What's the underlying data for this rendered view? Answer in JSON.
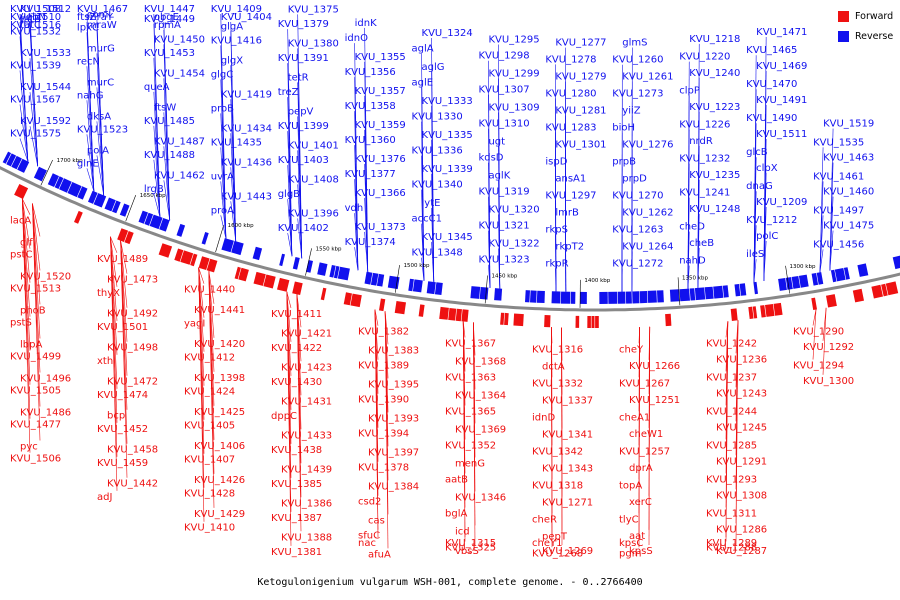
{
  "caption": "Ketogulonigenium vulgarum WSH-001, complete genome. - 0..2766400",
  "legend": [
    {
      "label": "Forward",
      "color": "#ee1111"
    },
    {
      "label": "Reverse",
      "color": "#1111ee"
    }
  ],
  "colors": {
    "forward": "#ee1111",
    "reverse": "#1111ee",
    "backbone": "#888888"
  },
  "scale_labels": [
    "1700 kbp",
    "1650 kbp",
    "1600 kbp",
    "1550 kbp",
    "1500 kbp",
    "1450 kbp",
    "1400 kbp",
    "1350 kbp",
    "1300 kbp"
  ],
  "reverse_genes": [
    "KVU_1575",
    "KVU_1592",
    "KVU_1567",
    "KVU_1544",
    "KVU_1539",
    "KVU_1533",
    "KVU_1532",
    "tatB",
    "KVU_1516",
    "KVU_1512",
    "KVU_1510",
    "tatC",
    "KVU_1508",
    "yebN",
    "glnE",
    "polA",
    "KVU_1523",
    "dksA",
    "nahG",
    "murC",
    "recN",
    "murG",
    "lpxC",
    "comL",
    "ftsZ",
    "mraW",
    "KVU_1467",
    "mraY",
    "lrgB",
    "KVU_1462",
    "KVU_1488",
    "KVU_1487",
    "KVU_1485",
    "ftsW",
    "queA",
    "KVU_1454",
    "KVU_1453",
    "KVU_1450",
    "KVU_1449",
    "rpmA",
    "KVU_1447",
    "obgE",
    "proA",
    "KVU_1443",
    "uvrA",
    "KVU_1436",
    "KVU_1435",
    "KVU_1434",
    "proB",
    "KVU_1419",
    "glgC",
    "glgX",
    "KVU_1416",
    "glgA",
    "KVU_1409",
    "KVU_1404",
    "KVU_1402",
    "KVU_1396",
    "glgB",
    "KVU_1408",
    "KVU_1403",
    "KVU_1401",
    "KVU_1399",
    "pepV",
    "treZ",
    "tetR",
    "KVU_1391",
    "KVU_1380",
    "KVU_1379",
    "KVU_1375",
    "KVU_1374",
    "KVU_1373",
    "vdh",
    "KVU_1366",
    "KVU_1377",
    "KVU_1376",
    "KVU_1360",
    "KVU_1359",
    "KVU_1358",
    "KVU_1357",
    "KVU_1356",
    "KVU_1355",
    "idnO",
    "idnK",
    "KVU_1348",
    "KVU_1345",
    "accC1",
    "lytE",
    "KVU_1340",
    "KVU_1339",
    "KVU_1336",
    "KVU_1335",
    "KVU_1330",
    "KVU_1333",
    "aglE",
    "aglG",
    "aglA",
    "KVU_1324",
    "KVU_1323",
    "KVU_1322",
    "KVU_1321",
    "KVU_1320",
    "KVU_1319",
    "aglK",
    "kdsD",
    "ugt",
    "KVU_1310",
    "KVU_1309",
    "KVU_1307",
    "KVU_1299",
    "KVU_1298",
    "KVU_1295",
    "rkpR",
    "rkpT2",
    "rkpS",
    "lmrB",
    "KVU_1297",
    "ansA1",
    "ispD",
    "KVU_1301",
    "KVU_1283",
    "KVU_1281",
    "KVU_1280",
    "KVU_1279",
    "KVU_1278",
    "KVU_1277",
    "KVU_1272",
    "KVU_1264",
    "KVU_1263",
    "KVU_1262",
    "KVU_1270",
    "prpD",
    "prpB",
    "KVU_1276",
    "bioH",
    "yiiZ",
    "KVU_1273",
    "KVU_1261",
    "KVU_1260",
    "glmS",
    "nahD",
    "cheB",
    "cheD",
    "KVU_1248",
    "KVU_1241",
    "KVU_1235",
    "KVU_1232",
    "nrdR",
    "KVU_1226",
    "KVU_1223",
    "clpP",
    "KVU_1240",
    "KVU_1220",
    "KVU_1218",
    "ileS",
    "polC",
    "KVU_1212",
    "KVU_1209",
    "dnaG",
    "clpX",
    "glcB",
    "KVU_1511",
    "KVU_1490",
    "KVU_1491",
    "KVU_1470",
    "KVU_1469",
    "KVU_1465",
    "KVU_1471",
    "KVU_1456",
    "KVU_1475",
    "KVU_1497",
    "KVU_1460",
    "KVU_1461",
    "KVU_1463",
    "KVU_1535",
    "KVU_1519"
  ],
  "forward_genes": [
    "lacA",
    "glf",
    "pstC",
    "KVU_1520",
    "KVU_1513",
    "phoB",
    "pstS",
    "lbpA",
    "KVU_1499",
    "KVU_1496",
    "KVU_1505",
    "KVU_1486",
    "KVU_1477",
    "pyc",
    "KVU_1506",
    "KVU_1489",
    "KVU_1473",
    "thyX",
    "KVU_1492",
    "KVU_1501",
    "KVU_1498",
    "xth",
    "KVU_1472",
    "KVU_1474",
    "bcp",
    "KVU_1452",
    "KVU_1458",
    "KVU_1459",
    "KVU_1442",
    "adJ",
    "KVU_1440",
    "KVU_1441",
    "yagI",
    "KVU_1420",
    "KVU_1412",
    "KVU_1398",
    "KVU_1424",
    "KVU_1425",
    "KVU_1405",
    "KVU_1406",
    "KVU_1407",
    "KVU_1426",
    "KVU_1428",
    "KVU_1429",
    "KVU_1410",
    "KVU_1411",
    "KVU_1421",
    "KVU_1422",
    "KVU_1423",
    "KVU_1430",
    "KVU_1431",
    "dppC",
    "KVU_1433",
    "KVU_1438",
    "KVU_1439",
    "KVU_1385",
    "KVU_1386",
    "KVU_1387",
    "KVU_1388",
    "KVU_1381",
    "KVU_1382",
    "KVU_1383",
    "KVU_1389",
    "KVU_1395",
    "KVU_1390",
    "KVU_1393",
    "KVU_1394",
    "KVU_1397",
    "KVU_1378",
    "KVU_1384",
    "csd2",
    "cas",
    "sfuC",
    "afuA",
    "nac",
    "KVU_1367",
    "KVU_1368",
    "KVU_1363",
    "KVU_1364",
    "KVU_1365",
    "KVU_1369",
    "KVU_1352",
    "menG",
    "aatB",
    "KVU_1346",
    "bglA",
    "icd",
    "KVU_1325",
    "vbsS",
    "KVU_1315",
    "KVU_1316",
    "dctA",
    "KVU_1332",
    "KVU_1337",
    "idnD",
    "KVU_1341",
    "KVU_1342",
    "KVU_1343",
    "KVU_1318",
    "KVU_1271",
    "cheR",
    "pepT",
    "KVU_1268",
    "KVU_1269",
    "cheY1",
    "cheY",
    "KVU_1266",
    "KVU_1267",
    "KVU_1251",
    "cheA1",
    "cheW1",
    "KVU_1257",
    "dprA",
    "topA",
    "xerC",
    "tlyC",
    "aat",
    "pgm",
    "kpsS",
    "kpsC",
    "KVU_1242",
    "KVU_1236",
    "KVU_1237",
    "KVU_1243",
    "KVU_1244",
    "KVU_1245",
    "KVU_1285",
    "KVU_1291",
    "KVU_1293",
    "KVU_1308",
    "KVU_1311",
    "KVU_1286",
    "KVU_1288",
    "KVU_1287",
    "KVU_1289",
    "KVU_1290",
    "KVU_1292",
    "KVU_1294",
    "KVU_1300"
  ]
}
